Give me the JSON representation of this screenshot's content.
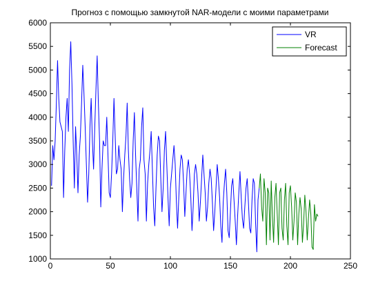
{
  "chart_data": {
    "type": "line",
    "title": "Прогноз с помощью замкнутой NAR-модели с моими параметрами",
    "xlabel": "",
    "ylabel": "",
    "xlim": [
      0,
      250
    ],
    "ylim": [
      1000,
      6000
    ],
    "x_ticks": [
      0,
      50,
      100,
      150,
      200,
      250
    ],
    "y_ticks": [
      1000,
      1500,
      2000,
      2500,
      3000,
      3500,
      4000,
      4500,
      5000,
      5500,
      6000
    ],
    "x_tick_labels": [
      "0",
      "50",
      "100",
      "150",
      "200",
      "250"
    ],
    "y_tick_labels": [
      "1000",
      "1500",
      "2000",
      "2500",
      "3000",
      "3500",
      "4000",
      "4500",
      "5000",
      "5500",
      "6000"
    ],
    "grid": false,
    "legend_position": "top-right",
    "series": [
      {
        "name": "VR",
        "color": "#0000ff",
        "x": [
          1,
          2,
          3,
          4,
          5,
          6,
          7,
          8,
          9,
          10,
          11,
          12,
          13,
          14,
          15,
          16,
          17,
          18,
          19,
          20,
          21,
          22,
          23,
          24,
          25,
          26,
          27,
          28,
          29,
          30,
          31,
          32,
          33,
          34,
          35,
          36,
          37,
          38,
          39,
          40,
          41,
          42,
          43,
          44,
          45,
          46,
          47,
          48,
          49,
          50,
          51,
          52,
          53,
          54,
          55,
          56,
          57,
          58,
          59,
          60,
          61,
          62,
          63,
          64,
          65,
          66,
          67,
          68,
          69,
          70,
          71,
          72,
          73,
          74,
          75,
          76,
          77,
          78,
          79,
          80,
          81,
          82,
          83,
          84,
          85,
          86,
          87,
          88,
          89,
          90,
          91,
          92,
          93,
          94,
          95,
          96,
          97,
          98,
          99,
          100,
          101,
          102,
          103,
          104,
          105,
          106,
          107,
          108,
          109,
          110,
          111,
          112,
          113,
          114,
          115,
          116,
          117,
          118,
          119,
          120,
          121,
          122,
          123,
          124,
          125,
          126,
          127,
          128,
          129,
          130,
          131,
          132,
          133,
          134,
          135,
          136,
          137,
          138,
          139,
          140,
          141,
          142,
          143,
          144,
          145,
          146,
          147,
          148,
          149,
          150,
          151,
          152,
          153,
          154,
          155,
          156,
          157,
          158,
          159,
          160,
          161,
          162,
          163,
          164,
          165,
          166,
          167,
          168,
          169,
          170,
          171,
          172,
          173,
          174
        ],
        "y": [
          2550,
          3400,
          3100,
          3500,
          4300,
          5200,
          4400,
          3900,
          3800,
          3700,
          2300,
          3300,
          4000,
          4400,
          3700,
          5000,
          5600,
          4700,
          3500,
          2500,
          3800,
          3200,
          2400,
          3200,
          3600,
          4300,
          5100,
          4500,
          3800,
          3000,
          2200,
          2800,
          3800,
          4400,
          3500,
          2900,
          3800,
          4600,
          5300,
          4300,
          3500,
          2100,
          2900,
          3500,
          3400,
          3400,
          4000,
          3200,
          2400,
          2300,
          2800,
          3500,
          4400,
          3600,
          2800,
          2900,
          3400,
          3100,
          2900,
          2000,
          2700,
          3200,
          3600,
          4300,
          3300,
          2700,
          2300,
          2600,
          3500,
          4100,
          3200,
          2500,
          1800,
          2900,
          3100,
          3800,
          4200,
          3100,
          2800,
          1800,
          2600,
          3000,
          3300,
          3700,
          2900,
          2100,
          1700,
          2500,
          3200,
          3600,
          3500,
          2700,
          2000,
          2500,
          3300,
          3700,
          3000,
          2300,
          1700,
          2500,
          2800,
          3100,
          3400,
          3000,
          2200,
          1650,
          2300,
          2900,
          3200,
          3100,
          2600,
          1900,
          2400,
          2900,
          3100,
          2800,
          2300,
          1600,
          2100,
          2800,
          3000,
          2800,
          2400,
          1800,
          2200,
          2700,
          3200,
          2800,
          2400,
          1800,
          2100,
          2600,
          2900,
          2700,
          2200,
          1600,
          2000,
          2500,
          3000,
          2700,
          2300,
          1700,
          1350,
          2200,
          2600,
          2900,
          2400,
          1600,
          1450,
          2000,
          2550,
          2700,
          2250,
          1800,
          1300,
          1900,
          2400,
          2850,
          2300,
          1850,
          1650,
          2100,
          2500,
          2700,
          2200,
          1650,
          1550,
          2250,
          2700,
          2600,
          1750,
          1150,
          2250,
          2500
        ]
      },
      {
        "name": "Forecast",
        "color": "#008000",
        "x": [
          174,
          175,
          176,
          177,
          178,
          179,
          180,
          181,
          182,
          183,
          184,
          185,
          186,
          187,
          188,
          189,
          190,
          191,
          192,
          193,
          194,
          195,
          196,
          197,
          198,
          199,
          200,
          201,
          202,
          203,
          204,
          205,
          206,
          207,
          208,
          209,
          210,
          211,
          212,
          213,
          214,
          215,
          216,
          217,
          218,
          219,
          220,
          221,
          222,
          223
        ],
        "y": [
          2500,
          2800,
          2100,
          1800,
          2700,
          2400,
          1300,
          2500,
          2400,
          1400,
          2650,
          1900,
          1350,
          2300,
          2600,
          1950,
          1300,
          2400,
          2500,
          1650,
          1400,
          2250,
          2600,
          1700,
          1300,
          2400,
          2550,
          2100,
          1400,
          1800,
          2400,
          2200,
          1300,
          1950,
          2300,
          2050,
          1350,
          1750,
          2350,
          2000,
          1400,
          1850,
          2250,
          1950,
          1250,
          1200,
          2150,
          1800,
          1950,
          1900
        ]
      }
    ]
  }
}
